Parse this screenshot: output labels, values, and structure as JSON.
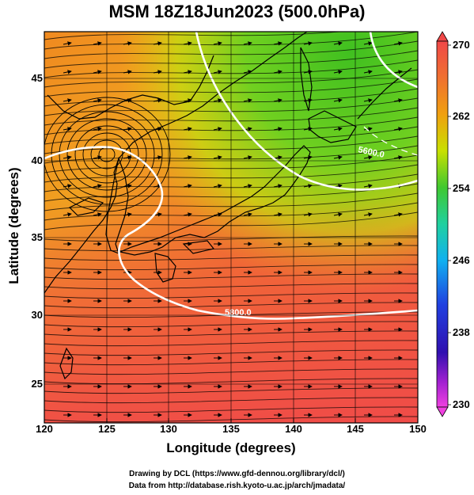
{
  "title": "MSM 18Z18Jun2023 (500.0hPa)",
  "axes": {
    "xlabel": "Longitude (degrees)",
    "ylabel": "Latitude  (degrees)",
    "xticks": [
      "120",
      "125",
      "130",
      "135",
      "140",
      "145",
      "150"
    ],
    "yticks": [
      "45",
      "40",
      "35",
      "30",
      "25"
    ],
    "xrange": [
      120,
      150
    ],
    "yrange": [
      22.4,
      47.6
    ]
  },
  "colorbar": {
    "ticks": [
      "270",
      "262",
      "254",
      "246",
      "238",
      "230"
    ],
    "range": [
      230,
      270
    ],
    "colors": [
      "#e040e0",
      "#6020d0",
      "#2030e0",
      "#1e90ff",
      "#00c8e0",
      "#20d0a0",
      "#30c030",
      "#80e020",
      "#c0e000",
      "#f0c000",
      "#f09010",
      "#f06030",
      "#f05050"
    ]
  },
  "contours": [
    {
      "label": "5600.0"
    },
    {
      "label": "5800.0"
    }
  ],
  "credits": {
    "line1": "Drawing by DCL (https://www.gfd-dennou.org/library/dcl/)",
    "line2": "Data from http://database.rish.kyoto-u.ac.jp/arch/jmadata/"
  }
}
